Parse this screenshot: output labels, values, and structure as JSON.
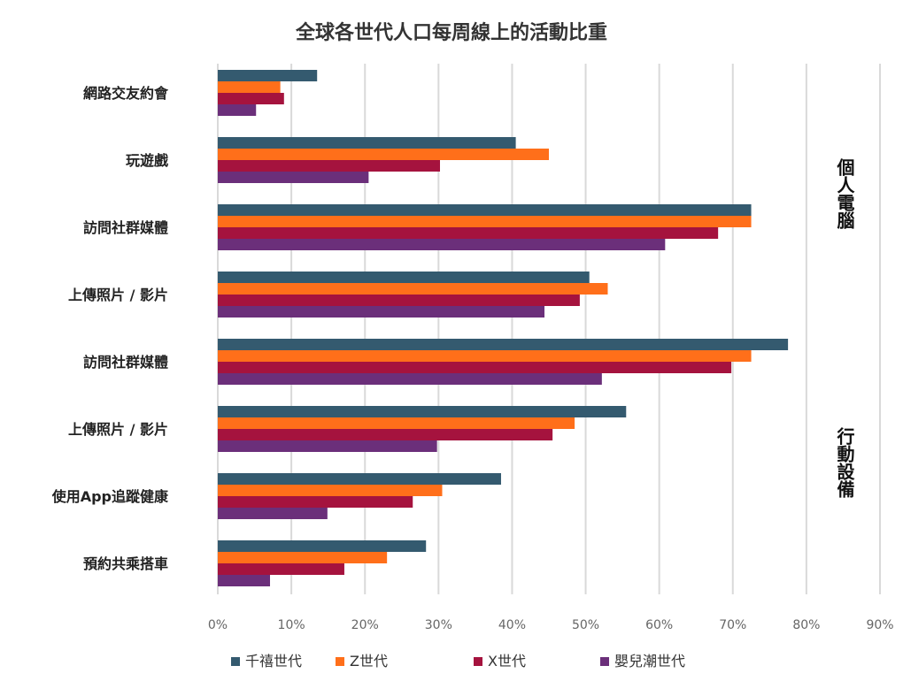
{
  "chart_data": {
    "type": "bar",
    "orientation": "horizontal",
    "title": "全球各世代人口每周線上的活動比重",
    "xlabel": "",
    "ylabel": "",
    "xlim": [
      0,
      90
    ],
    "xticks": [
      "0%",
      "10%",
      "20%",
      "30%",
      "40%",
      "50%",
      "60%",
      "70%",
      "80%",
      "90%"
    ],
    "grid": true,
    "legend_position": "bottom",
    "categories": [
      "網路交友約會",
      "玩遊戲",
      "訪問社群媒體",
      "上傳照片 / 影片",
      "訪問社群媒體",
      "上傳照片 / 影片",
      "使用App追蹤健康",
      "預約共乘搭車"
    ],
    "groups": [
      {
        "label": "個人電腦",
        "from": 0,
        "to": 3
      },
      {
        "label": "行動設備",
        "from": 4,
        "to": 7
      }
    ],
    "series": [
      {
        "name": "千禧世代",
        "color": "#345A6F",
        "values": [
          13.5,
          40.5,
          72.5,
          50.5,
          77.5,
          55.5,
          38.5,
          28.3
        ]
      },
      {
        "name": "Z世代",
        "color": "#FF6F1A",
        "values": [
          8.5,
          45,
          72.5,
          53,
          72.5,
          48.5,
          30.5,
          23
        ]
      },
      {
        "name": "X世代",
        "color": "#A5133E",
        "values": [
          9,
          30.2,
          68,
          49.2,
          69.8,
          45.5,
          26.5,
          17.2
        ]
      },
      {
        "name": "嬰兒潮世代",
        "color": "#6B2F7A",
        "values": [
          5.2,
          20.5,
          60.8,
          44.4,
          52.2,
          29.8,
          14.9,
          7.1
        ]
      }
    ]
  }
}
